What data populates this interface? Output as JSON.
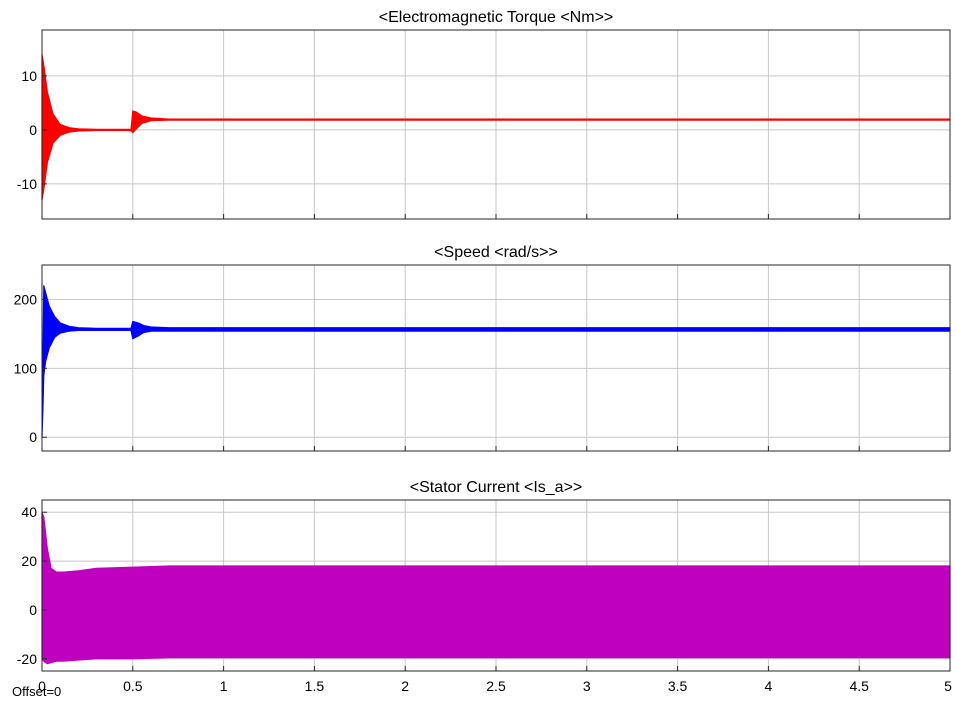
{
  "window": {
    "offset_label": "Offset=0"
  },
  "chart_data": [
    {
      "type": "line",
      "title": "<Electromagnetic Torque <Nm>>",
      "xlim": [
        0,
        5
      ],
      "ylim": [
        -16.5,
        18.5
      ],
      "yticks": [
        -10,
        0,
        10
      ],
      "ytick_labels": [
        "-10",
        "0",
        "10"
      ],
      "xticks": [
        0,
        0.5,
        1,
        1.5,
        2,
        2.5,
        3,
        3.5,
        4,
        4.5,
        5
      ],
      "xtick_labels": [],
      "grid": true,
      "color": "#ff0000",
      "series": [
        {
          "x": [
            0,
            0.01,
            0.03,
            0.06,
            0.1,
            0.15,
            0.2,
            0.3,
            0.4,
            0.49,
            0.5,
            0.52,
            0.55,
            0.6,
            0.7,
            1,
            2,
            3,
            4,
            5
          ],
          "y_upper": [
            14,
            12,
            7,
            3,
            1,
            0.4,
            0.2,
            0.1,
            0.1,
            0.1,
            3.5,
            3.3,
            2.6,
            2.2,
            2.0,
            2.0,
            2.0,
            2.0,
            2.0,
            2.0
          ],
          "y_lower": [
            -13,
            -11,
            -6,
            -2.5,
            -1,
            -0.4,
            -0.2,
            -0.1,
            -0.1,
            -0.1,
            -0.5,
            0.2,
            1.2,
            1.7,
            1.8,
            1.8,
            1.8,
            1.8,
            1.8,
            1.8
          ]
        }
      ]
    },
    {
      "type": "line",
      "title": "<Speed <rad/s>>",
      "xlim": [
        0,
        5
      ],
      "ylim": [
        -20,
        250
      ],
      "yticks": [
        0,
        100,
        200
      ],
      "ytick_labels": [
        "0",
        "100",
        "200"
      ],
      "xticks": [
        0,
        0.5,
        1,
        1.5,
        2,
        2.5,
        3,
        3.5,
        4,
        4.5,
        5
      ],
      "xtick_labels": [],
      "grid": true,
      "color": "#0000ff",
      "series": [
        {
          "x": [
            0,
            0.005,
            0.01,
            0.02,
            0.04,
            0.07,
            0.1,
            0.15,
            0.2,
            0.3,
            0.49,
            0.5,
            0.53,
            0.56,
            0.6,
            0.7,
            1,
            2,
            3,
            4,
            5
          ],
          "y_upper": [
            0,
            110,
            220,
            210,
            190,
            175,
            166,
            161,
            159,
            158,
            158,
            168,
            166,
            162,
            160,
            159,
            159,
            159,
            159,
            159,
            159
          ],
          "y_lower": [
            0,
            40,
            90,
            110,
            130,
            145,
            151,
            154,
            155,
            155,
            155,
            143,
            147,
            152,
            154,
            154,
            154,
            154,
            154,
            154,
            154
          ]
        }
      ]
    },
    {
      "type": "line",
      "title": "<Stator Current <Is_a>>",
      "xlim": [
        0,
        5
      ],
      "ylim": [
        -25,
        45
      ],
      "yticks": [
        -20,
        0,
        20,
        40
      ],
      "ytick_labels": [
        "-20",
        "0",
        "20",
        "40"
      ],
      "xticks": [
        0,
        0.5,
        1,
        1.5,
        2,
        2.5,
        3,
        3.5,
        4,
        4.5,
        5
      ],
      "xtick_labels": [
        "0",
        "0.5",
        "1",
        "1.5",
        "2",
        "2.5",
        "3",
        "3.5",
        "4",
        "4.5",
        "5"
      ],
      "grid": true,
      "color": "#bf00bf",
      "series": [
        {
          "x": [
            0,
            0.01,
            0.03,
            0.05,
            0.08,
            0.12,
            0.2,
            0.3,
            0.5,
            0.7,
            1,
            2,
            3,
            4,
            5
          ],
          "y_upper": [
            40,
            38,
            25,
            17,
            15.5,
            15.5,
            16,
            17,
            17.5,
            18,
            18,
            18,
            18,
            18,
            18
          ],
          "y_lower": [
            -20,
            -21,
            -22,
            -21.5,
            -21,
            -21,
            -20.5,
            -20,
            -20,
            -19.5,
            -19.5,
            -19.5,
            -19.5,
            -19.5,
            -19.5
          ]
        }
      ]
    }
  ]
}
